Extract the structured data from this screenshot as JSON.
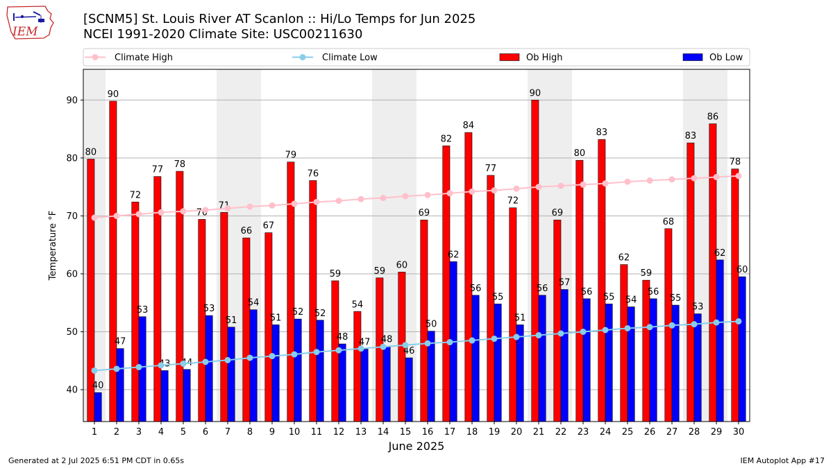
{
  "header": {
    "logo_text": "IEM",
    "title_line1": "[SCNM5] St. Louis River  AT Scanlon :: Hi/Lo Temps for Jun 2025",
    "title_line2": "NCEI 1991-2020 Climate Site: USC00211630"
  },
  "footer": {
    "generated": "Generated at 2 Jul 2025 6:51 PM CDT in 0.65s",
    "app": "IEM Autoplot App #17"
  },
  "colors": {
    "ob_high": "#ff0000",
    "ob_low": "#0000ff",
    "climate_high": "#ffc0cb",
    "climate_low": "#87ceeb",
    "weekend_shade": "#eeeeee",
    "grid": "#b0b0b0"
  },
  "chart_data": {
    "type": "bar",
    "xlabel": "June 2025",
    "ylabel": "Temperature °F",
    "ylim": [
      34.5,
      95.3
    ],
    "yticks": [
      40,
      50,
      60,
      70,
      80,
      90
    ],
    "grid": "horizontal",
    "legend_placement": "top",
    "categories": [
      "1",
      "2",
      "3",
      "4",
      "5",
      "6",
      "7",
      "8",
      "9",
      "10",
      "11",
      "12",
      "13",
      "14",
      "15",
      "16",
      "17",
      "18",
      "19",
      "20",
      "21",
      "22",
      "23",
      "24",
      "25",
      "26",
      "27",
      "28",
      "29",
      "30"
    ],
    "weekend_shading_days": [
      1,
      7,
      8,
      14,
      15,
      21,
      22,
      28,
      29
    ],
    "series": [
      {
        "name": "Ob High",
        "kind": "bar",
        "values": [
          80,
          90,
          72,
          77,
          78,
          70,
          71,
          66,
          67,
          79,
          76,
          59,
          54,
          59,
          60,
          69,
          82,
          84,
          77,
          72,
          90,
          69,
          80,
          83,
          62,
          59,
          68,
          83,
          86,
          78
        ],
        "plotted": [
          79.8,
          89.8,
          72.4,
          76.8,
          77.7,
          69.4,
          70.6,
          66.2,
          67.1,
          79.3,
          76.1,
          58.8,
          53.5,
          59.3,
          60.3,
          69.3,
          82.1,
          84.4,
          77.0,
          71.4,
          90.0,
          69.3,
          79.6,
          83.2,
          61.6,
          58.9,
          67.8,
          82.6,
          85.9,
          78.1
        ]
      },
      {
        "name": "Ob Low",
        "kind": "bar",
        "values": [
          40,
          47,
          53,
          43,
          44,
          53,
          51,
          54,
          51,
          52,
          52,
          48,
          47,
          48,
          46,
          50,
          62,
          56,
          55,
          51,
          56,
          57,
          56,
          55,
          54,
          56,
          55,
          53,
          62,
          60
        ],
        "plotted": [
          39.5,
          47.1,
          52.6,
          43.3,
          43.5,
          52.8,
          50.8,
          53.8,
          51.2,
          52.2,
          52.0,
          47.9,
          47.0,
          47.5,
          45.5,
          50.1,
          62.1,
          56.3,
          54.8,
          51.2,
          56.3,
          57.3,
          55.7,
          54.8,
          54.3,
          55.7,
          54.6,
          53.1,
          62.4,
          59.5
        ]
      },
      {
        "name": "Climate High",
        "kind": "line",
        "values": [
          69.7,
          70.0,
          70.3,
          70.6,
          70.8,
          71.0,
          71.3,
          71.6,
          71.8,
          72.1,
          72.4,
          72.6,
          72.9,
          73.1,
          73.4,
          73.6,
          73.9,
          74.2,
          74.4,
          74.7,
          75.0,
          75.2,
          75.4,
          75.6,
          75.9,
          76.1,
          76.3,
          76.5,
          76.7,
          76.9
        ]
      },
      {
        "name": "Climate Low",
        "kind": "line",
        "values": [
          43.3,
          43.6,
          43.9,
          44.2,
          44.5,
          44.8,
          45.1,
          45.5,
          45.8,
          46.1,
          46.5,
          46.8,
          47.1,
          47.4,
          47.7,
          48.0,
          48.2,
          48.5,
          48.8,
          49.1,
          49.4,
          49.7,
          50.0,
          50.3,
          50.6,
          50.8,
          51.1,
          51.3,
          51.6,
          51.8
        ]
      }
    ]
  }
}
